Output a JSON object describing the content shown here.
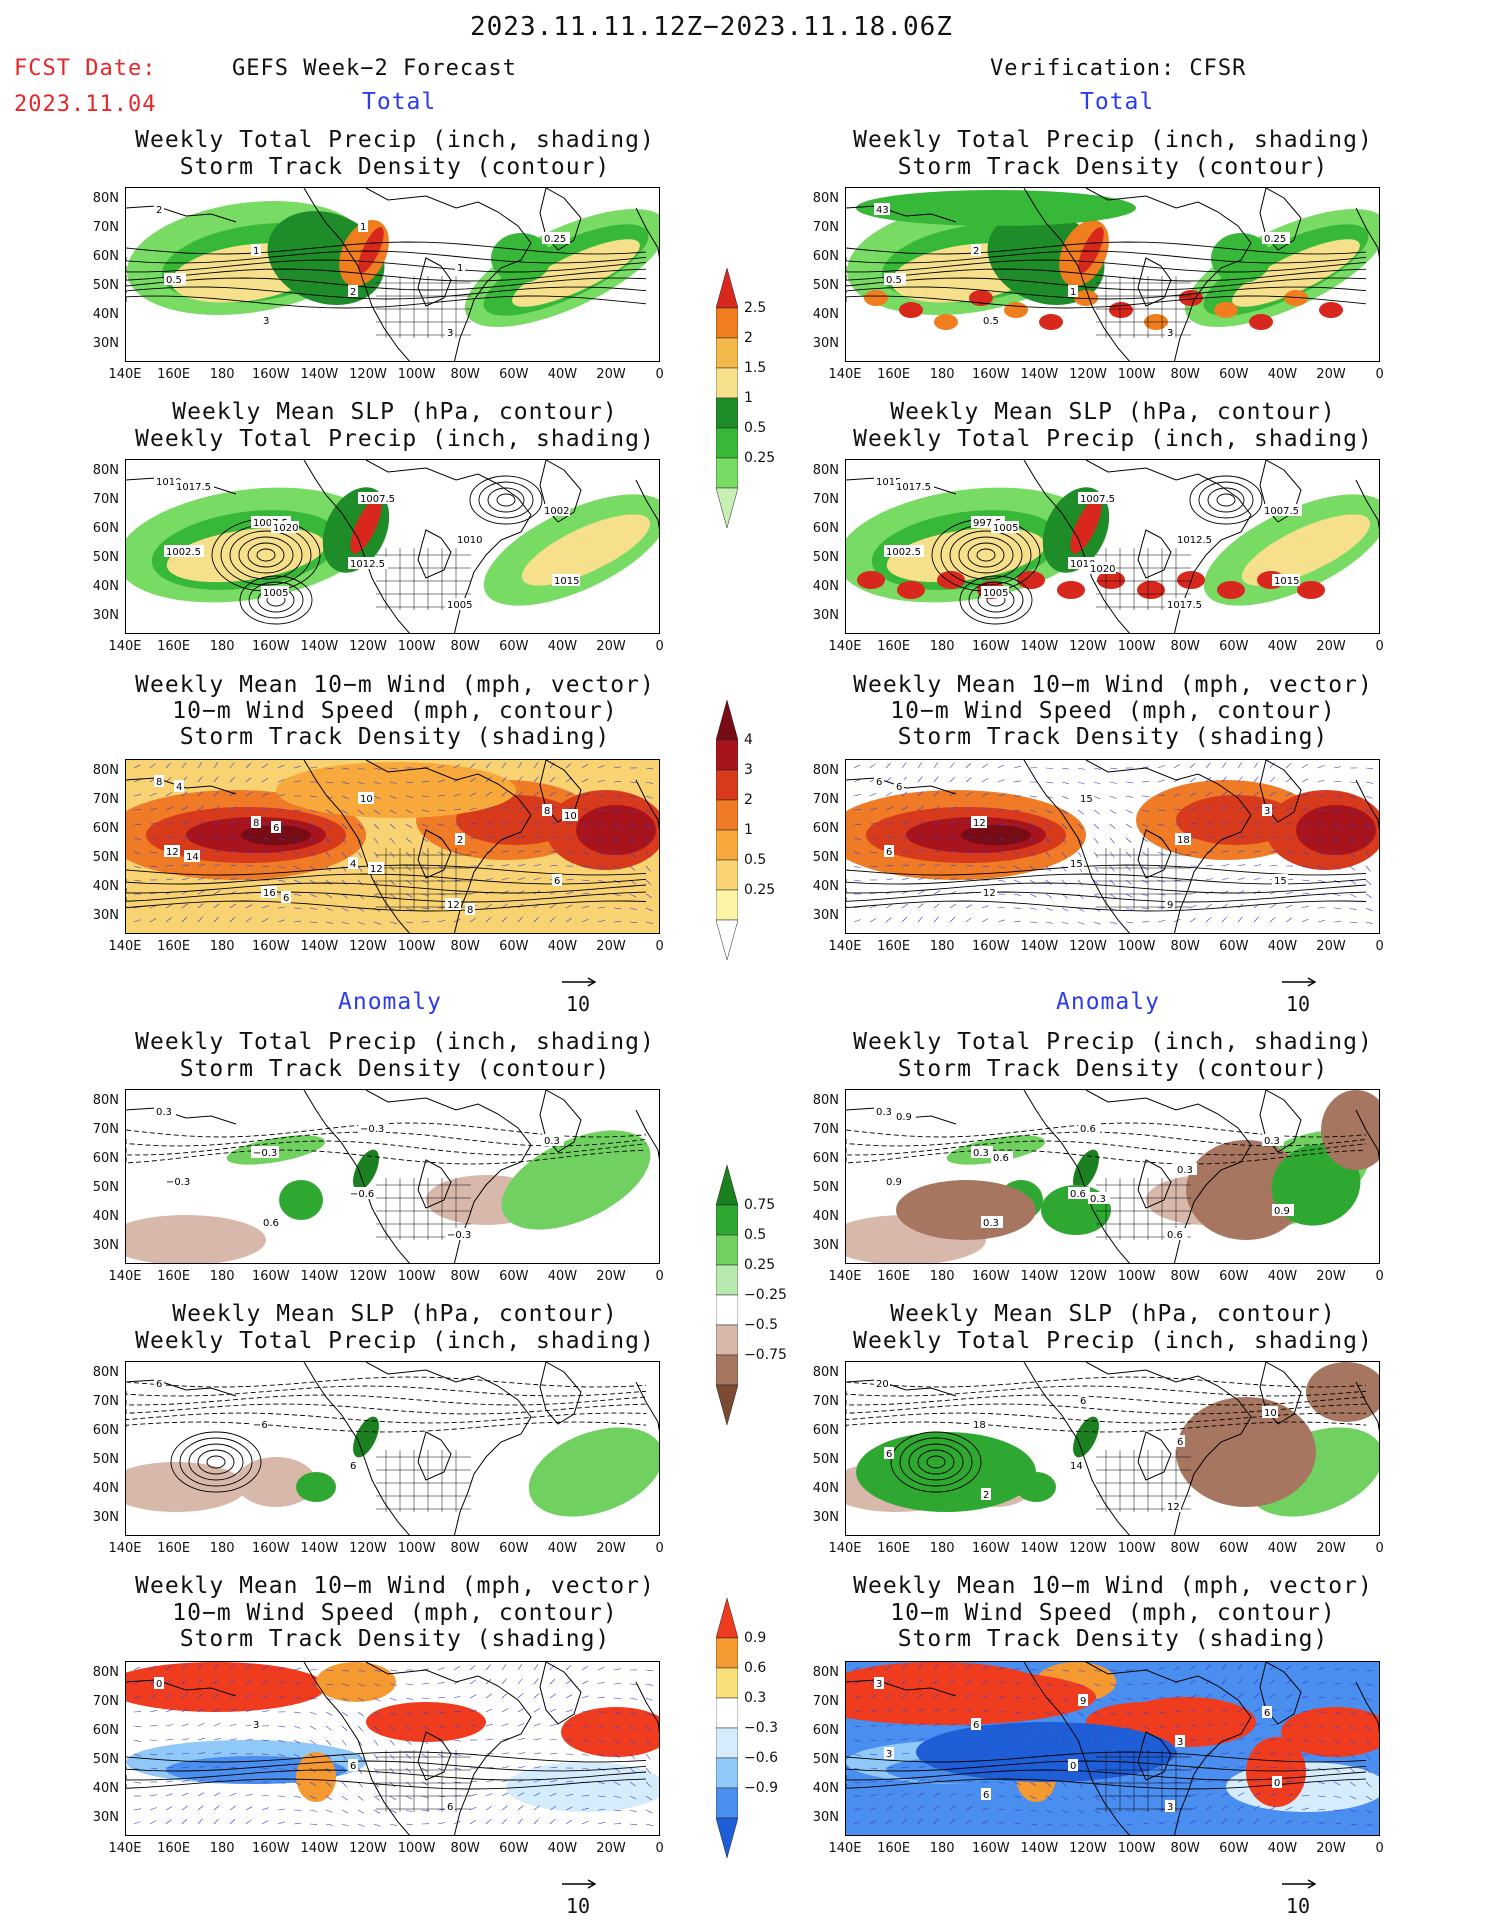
{
  "header": {
    "date_range": "2023.11.11.12Z−2023.11.18.06Z",
    "fcst_label": "FCST Date:",
    "fcst_date": "2023.11.04",
    "left_title": "GEFS Week−2 Forecast",
    "right_title": "Verification: CFSR"
  },
  "sections": {
    "total": "Total",
    "anomaly": "Anomaly"
  },
  "panel_titles": {
    "precip_storm": [
      "Weekly Total Precip (inch, shading)",
      "Storm Track Density (contour)"
    ],
    "slp_precip": [
      "Weekly Mean SLP (hPa, contour)",
      "Weekly Total Precip (inch, shading)"
    ],
    "wind_storm": [
      "Weekly Mean 10−m Wind (mph, vector)",
      "10−m Wind Speed (mph, contour)",
      "Storm Track Density (shading)"
    ]
  },
  "axes": {
    "lat_ticks": [
      "80N",
      "70N",
      "60N",
      "50N",
      "40N",
      "30N"
    ],
    "lon_ticks": [
      "140E",
      "160E",
      "180",
      "160W",
      "140W",
      "120W",
      "100W",
      "80W",
      "60W",
      "40W",
      "20W",
      "0"
    ]
  },
  "vector_ref": "10",
  "colorbars": {
    "precip_total": {
      "labels": [
        "0.25",
        "0.5",
        "1",
        "1.5",
        "2",
        "2.5"
      ],
      "colors": [
        "#c8f0b4",
        "#78dc64",
        "#38b838",
        "#1e8c28",
        "#f7e08c",
        "#f2b84a",
        "#f07d1e",
        "#d8281e"
      ]
    },
    "storm_total": {
      "labels": [
        "0.25",
        "0.5",
        "1",
        "2",
        "3",
        "4"
      ],
      "colors": [
        "#ffffff",
        "#fbf3a6",
        "#f9d272",
        "#f7a93c",
        "#ef7b26",
        "#d83a1c",
        "#a8141c",
        "#780c14"
      ]
    },
    "precip_anom": {
      "labels": [
        "−0.75",
        "−0.5",
        "−0.25",
        "0.25",
        "0.5",
        "0.75"
      ],
      "colors": [
        "#7a4a32",
        "#a77660",
        "#d8b8ab",
        "#ffffff",
        "#b8eab0",
        "#70d060",
        "#2ea830",
        "#1a8020"
      ]
    },
    "storm_anom": {
      "labels": [
        "−0.9",
        "−0.6",
        "−0.3",
        "0.3",
        "0.6",
        "0.9"
      ],
      "colors": [
        "#1e5fd8",
        "#4a8ef0",
        "#90c8f8",
        "#d4ecfb",
        "#ffffff",
        "#f9e07a",
        "#f59a30",
        "#ef3c1e"
      ]
    }
  },
  "contour_labels": {
    "l1": [
      "2",
      "1",
      "2",
      "3",
      "0.25",
      "0.5",
      "3",
      "1",
      "1"
    ],
    "r1": [
      "43",
      "2",
      "1",
      "3",
      "0.25",
      "0.5",
      "0.5"
    ],
    "l2": [
      "1010",
      "1007.5",
      "1012.5",
      "1005",
      "1002",
      "1002.5",
      "1005",
      "1007.5",
      "1010",
      "1015",
      "1017.5",
      "1020"
    ],
    "r2": [
      "1015",
      "997.5",
      "1010",
      "1017.5",
      "1007.5",
      "1002.5",
      "1005",
      "1007.5",
      "1012.5",
      "1015",
      "1017.5",
      "1005",
      "1020"
    ],
    "l3": [
      "8",
      "8",
      "4",
      "12",
      "8",
      "12",
      "16",
      "10",
      "2",
      "6",
      "4",
      "6",
      "12",
      "8",
      "10",
      "14",
      "6"
    ],
    "r3": [
      "6",
      "12",
      "15",
      "9",
      "3",
      "6",
      "12",
      "15",
      "18",
      "15",
      "6"
    ],
    "l4": [
      "0.3",
      "−0.3",
      "−0.6",
      "−0.3",
      "0.3",
      "−0.3",
      "0.6",
      "−0.3"
    ],
    "r4": [
      "0.3",
      "0.3",
      "0.6",
      "0.6",
      "0.3",
      "0.9",
      "0.3",
      "0.6",
      "0.3",
      "0.9",
      "0.9",
      "0.6",
      "0.3"
    ],
    "l5": [
      "6",
      "−6",
      "6"
    ],
    "r5": [
      "20",
      "18",
      "14",
      "12",
      "10",
      "6",
      "2",
      "6",
      "6"
    ],
    "l6": [
      "0",
      "3",
      "6",
      "6"
    ],
    "r6": [
      "3",
      "6",
      "0",
      "3",
      "6",
      "3",
      "6",
      "9",
      "3",
      "0"
    ]
  }
}
